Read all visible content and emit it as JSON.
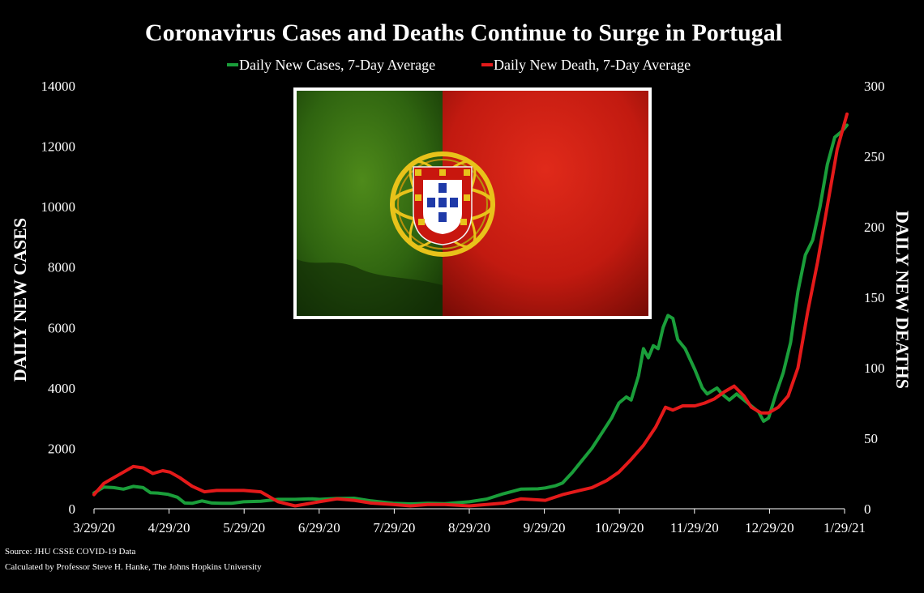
{
  "chart_data": {
    "type": "line",
    "title": "Coronavirus Cases and Deaths Continue to Surge in Portugal",
    "x_tick_labels": [
      "3/29/20",
      "4/29/20",
      "5/29/20",
      "6/29/20",
      "7/29/20",
      "8/29/20",
      "9/29/20",
      "10/29/20",
      "11/29/20",
      "12/29/20",
      "1/29/21"
    ],
    "x_range": [
      "2020-03-29",
      "2021-01-29"
    ],
    "y_left": {
      "label": "DAILY NEW CASES",
      "range": [
        0,
        14000
      ],
      "ticks": [
        0,
        2000,
        4000,
        6000,
        8000,
        10000,
        12000,
        14000
      ]
    },
    "y_right": {
      "label": "DAILY NEW DEATHS",
      "range": [
        0,
        300
      ],
      "ticks": [
        0,
        50,
        100,
        150,
        200,
        250,
        300
      ]
    },
    "legend_position": "top",
    "grid": false,
    "series": [
      {
        "name": "Daily New Cases, 7-Day Average",
        "axis": "left",
        "color": "#1a9e3a",
        "points": [
          [
            "2020-03-29",
            520
          ],
          [
            "2020-04-02",
            720
          ],
          [
            "2020-04-06",
            700
          ],
          [
            "2020-04-10",
            650
          ],
          [
            "2020-04-14",
            740
          ],
          [
            "2020-04-18",
            700
          ],
          [
            "2020-04-21",
            530
          ],
          [
            "2020-04-24",
            520
          ],
          [
            "2020-04-28",
            480
          ],
          [
            "2020-05-02",
            380
          ],
          [
            "2020-05-05",
            190
          ],
          [
            "2020-05-08",
            180
          ],
          [
            "2020-05-12",
            260
          ],
          [
            "2020-05-16",
            190
          ],
          [
            "2020-05-20",
            180
          ],
          [
            "2020-05-24",
            180
          ],
          [
            "2020-05-29",
            230
          ],
          [
            "2020-06-05",
            250
          ],
          [
            "2020-06-12",
            310
          ],
          [
            "2020-06-19",
            310
          ],
          [
            "2020-06-26",
            330
          ],
          [
            "2020-06-29",
            310
          ],
          [
            "2020-07-06",
            340
          ],
          [
            "2020-07-13",
            350
          ],
          [
            "2020-07-20",
            260
          ],
          [
            "2020-07-29",
            180
          ],
          [
            "2020-08-05",
            160
          ],
          [
            "2020-08-12",
            180
          ],
          [
            "2020-08-19",
            170
          ],
          [
            "2020-08-29",
            230
          ],
          [
            "2020-09-05",
            320
          ],
          [
            "2020-09-12",
            500
          ],
          [
            "2020-09-19",
            650
          ],
          [
            "2020-09-26",
            660
          ],
          [
            "2020-09-29",
            690
          ],
          [
            "2020-10-03",
            760
          ],
          [
            "2020-10-06",
            850
          ],
          [
            "2020-10-10",
            1200
          ],
          [
            "2020-10-14",
            1600
          ],
          [
            "2020-10-18",
            2000
          ],
          [
            "2020-10-22",
            2500
          ],
          [
            "2020-10-26",
            3000
          ],
          [
            "2020-10-29",
            3500
          ],
          [
            "2020-11-01",
            3700
          ],
          [
            "2020-11-03",
            3600
          ],
          [
            "2020-11-06",
            4400
          ],
          [
            "2020-11-08",
            5300
          ],
          [
            "2020-11-10",
            5000
          ],
          [
            "2020-11-12",
            5400
          ],
          [
            "2020-11-14",
            5300
          ],
          [
            "2020-11-16",
            6000
          ],
          [
            "2020-11-18",
            6400
          ],
          [
            "2020-11-20",
            6300
          ],
          [
            "2020-11-22",
            5600
          ],
          [
            "2020-11-25",
            5300
          ],
          [
            "2020-11-29",
            4600
          ],
          [
            "2020-12-02",
            4000
          ],
          [
            "2020-12-04",
            3800
          ],
          [
            "2020-12-06",
            3900
          ],
          [
            "2020-12-08",
            4000
          ],
          [
            "2020-12-10",
            3800
          ],
          [
            "2020-12-13",
            3600
          ],
          [
            "2020-12-16",
            3800
          ],
          [
            "2020-12-19",
            3600
          ],
          [
            "2020-12-22",
            3400
          ],
          [
            "2020-12-25",
            3200
          ],
          [
            "2020-12-27",
            2900
          ],
          [
            "2020-12-29",
            3000
          ],
          [
            "2021-01-01",
            3800
          ],
          [
            "2021-01-04",
            4500
          ],
          [
            "2021-01-07",
            5500
          ],
          [
            "2021-01-10",
            7200
          ],
          [
            "2021-01-13",
            8400
          ],
          [
            "2021-01-16",
            8900
          ],
          [
            "2021-01-19",
            10000
          ],
          [
            "2021-01-22",
            11400
          ],
          [
            "2021-01-25",
            12300
          ],
          [
            "2021-01-28",
            12500
          ],
          [
            "2021-01-30",
            12700
          ]
        ]
      },
      {
        "name": "Daily New Death, 7-Day Average",
        "axis": "right",
        "color": "#e41a1a",
        "points": [
          [
            "2020-03-29",
            10
          ],
          [
            "2020-04-02",
            18
          ],
          [
            "2020-04-06",
            22
          ],
          [
            "2020-04-10",
            26
          ],
          [
            "2020-04-14",
            30
          ],
          [
            "2020-04-18",
            29
          ],
          [
            "2020-04-22",
            25
          ],
          [
            "2020-04-26",
            27
          ],
          [
            "2020-04-29",
            26
          ],
          [
            "2020-05-03",
            22
          ],
          [
            "2020-05-08",
            16
          ],
          [
            "2020-05-13",
            12
          ],
          [
            "2020-05-18",
            13
          ],
          [
            "2020-05-24",
            13
          ],
          [
            "2020-05-29",
            13
          ],
          [
            "2020-06-05",
            12
          ],
          [
            "2020-06-12",
            5
          ],
          [
            "2020-06-19",
            2
          ],
          [
            "2020-06-29",
            5
          ],
          [
            "2020-07-06",
            7
          ],
          [
            "2020-07-13",
            6
          ],
          [
            "2020-07-20",
            4
          ],
          [
            "2020-07-29",
            3
          ],
          [
            "2020-08-05",
            2
          ],
          [
            "2020-08-12",
            3
          ],
          [
            "2020-08-19",
            3
          ],
          [
            "2020-08-29",
            2
          ],
          [
            "2020-09-05",
            3
          ],
          [
            "2020-09-12",
            4
          ],
          [
            "2020-09-19",
            7
          ],
          [
            "2020-09-29",
            6
          ],
          [
            "2020-10-06",
            10
          ],
          [
            "2020-10-13",
            13
          ],
          [
            "2020-10-18",
            15
          ],
          [
            "2020-10-24",
            20
          ],
          [
            "2020-10-29",
            26
          ],
          [
            "2020-11-03",
            35
          ],
          [
            "2020-11-08",
            45
          ],
          [
            "2020-11-13",
            58
          ],
          [
            "2020-11-17",
            72
          ],
          [
            "2020-11-20",
            70
          ],
          [
            "2020-11-24",
            73
          ],
          [
            "2020-11-29",
            73
          ],
          [
            "2020-12-03",
            75
          ],
          [
            "2020-12-07",
            78
          ],
          [
            "2020-12-11",
            83
          ],
          [
            "2020-12-15",
            87
          ],
          [
            "2020-12-19",
            80
          ],
          [
            "2020-12-22",
            72
          ],
          [
            "2020-12-26",
            68
          ],
          [
            "2020-12-29",
            68
          ],
          [
            "2021-01-02",
            72
          ],
          [
            "2021-01-06",
            80
          ],
          [
            "2021-01-10",
            100
          ],
          [
            "2021-01-14",
            140
          ],
          [
            "2021-01-18",
            175
          ],
          [
            "2021-01-22",
            215
          ],
          [
            "2021-01-26",
            255
          ],
          [
            "2021-01-30",
            280
          ]
        ]
      }
    ],
    "image": {
      "subject": "Portugal flag",
      "frame_color": "#ffffff"
    },
    "source_lines": [
      "Source: JHU CSSE COVID-19 Data",
      "Calculated by Professor Steve H. Hanke, The Johns Hopkins University"
    ]
  }
}
